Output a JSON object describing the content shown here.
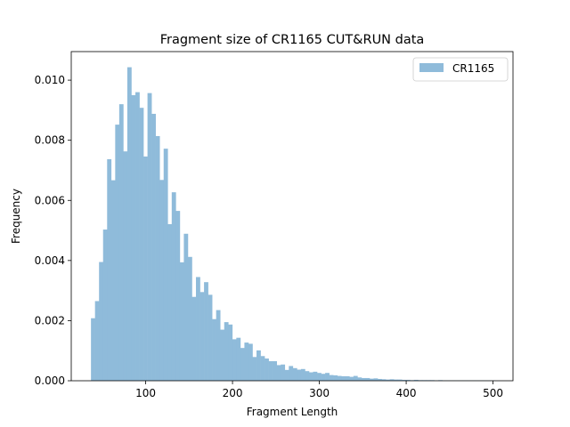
{
  "chart_data": {
    "type": "bar",
    "title": "Fragment size of CR1165 CUT&RUN data",
    "xlabel": "Fragment Length",
    "ylabel": "Frequency",
    "xlim": [
      14.3,
      523.0
    ],
    "ylim": [
      0,
      0.01095
    ],
    "xticks": [
      100,
      200,
      300,
      400,
      500
    ],
    "xtick_labels": [
      "100",
      "200",
      "300",
      "400",
      "500"
    ],
    "yticks": [
      0.0,
      0.002,
      0.004,
      0.006,
      0.008,
      0.01
    ],
    "ytick_labels": [
      "0.000",
      "0.002",
      "0.004",
      "0.006",
      "0.008",
      "0.010"
    ],
    "legend_position": "upper right",
    "bar_color": "#8fbbda",
    "series": [
      {
        "name": "CR1165",
        "bin_edges": [
          37.0,
          41.65,
          46.3,
          50.95,
          55.6,
          60.25,
          64.9,
          69.55,
          74.2,
          78.85,
          83.5,
          88.15,
          92.8,
          97.45,
          102.1,
          106.75,
          111.4,
          116.05,
          120.7,
          125.35,
          130.0,
          134.65,
          139.3,
          143.95,
          148.6,
          153.25,
          157.9,
          162.55,
          167.2,
          171.85,
          176.5,
          181.15,
          185.8,
          190.45,
          195.1,
          199.75,
          204.4,
          209.05,
          213.7,
          218.35,
          223.0,
          227.65,
          232.3,
          236.95,
          241.6,
          246.25,
          250.9,
          255.55,
          260.2,
          264.85,
          269.5,
          274.15,
          278.8,
          283.45,
          288.1,
          292.75,
          297.4,
          302.05,
          306.7,
          311.35,
          316.0,
          320.65,
          325.3,
          329.95,
          334.6,
          339.25,
          343.9,
          348.55,
          353.2,
          357.85,
          362.5,
          367.15,
          371.8,
          376.45,
          381.1,
          385.75,
          390.4,
          395.05,
          399.7,
          404.35,
          409.0,
          413.65,
          418.3,
          422.95,
          427.6,
          432.25,
          436.9,
          441.55,
          446.2,
          450.85,
          455.5,
          460.15,
          464.8,
          469.45,
          474.1,
          478.75,
          483.4,
          488.05,
          492.7,
          497.35,
          502.0
        ],
        "values": [
          0.00208,
          0.00265,
          0.00395,
          0.00503,
          0.00737,
          0.00667,
          0.00852,
          0.0092,
          0.00763,
          0.01043,
          0.0095,
          0.0096,
          0.00908,
          0.00746,
          0.00957,
          0.00888,
          0.00814,
          0.00668,
          0.00772,
          0.00521,
          0.00627,
          0.00565,
          0.00394,
          0.00489,
          0.00412,
          0.00279,
          0.00345,
          0.00295,
          0.00328,
          0.00286,
          0.00205,
          0.00235,
          0.0017,
          0.00195,
          0.00187,
          0.00138,
          0.00143,
          0.00109,
          0.00127,
          0.00123,
          0.00079,
          0.00101,
          0.00082,
          0.00074,
          0.00065,
          0.00065,
          0.00052,
          0.00054,
          0.00036,
          0.00049,
          0.00042,
          0.00037,
          0.00039,
          0.00032,
          0.00028,
          0.0003,
          0.00026,
          0.00023,
          0.00026,
          0.00019,
          0.00018,
          0.00016,
          0.00015,
          0.00015,
          0.00013,
          0.00016,
          0.00011,
          9e-05,
          9e-05,
          7e-05,
          8e-05,
          6e-05,
          5e-05,
          4e-05,
          5e-05,
          4e-05,
          4e-05,
          3e-05,
          3e-05,
          2e-05,
          3e-05,
          2e-05,
          2e-05,
          2e-05,
          2e-05,
          1e-05,
          2e-05,
          1e-05,
          1e-05,
          1e-05,
          1e-05,
          1e-05,
          1e-05,
          1e-05,
          1e-05,
          1e-05,
          1e-05,
          1e-05,
          1e-05,
          1e-05
        ]
      }
    ]
  }
}
